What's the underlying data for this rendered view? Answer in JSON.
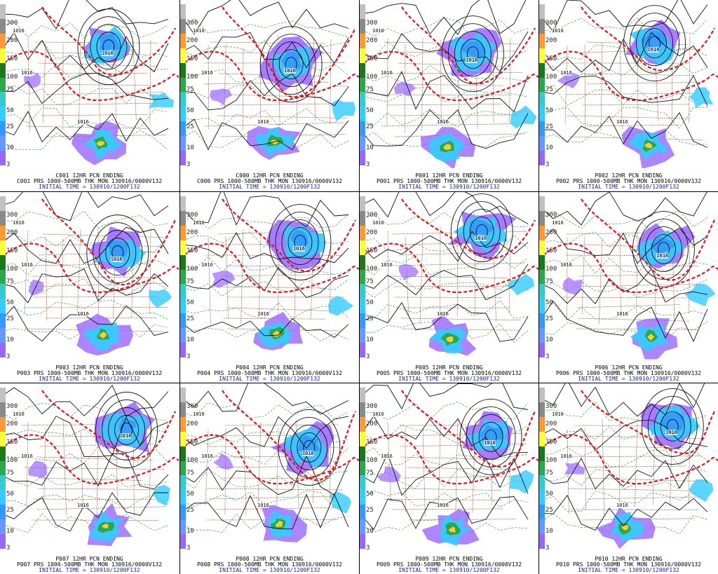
{
  "colorbar": {
    "ticks": [
      "300",
      "200",
      "150",
      "100",
      "75",
      "50",
      "25",
      "10",
      "3"
    ],
    "colors": [
      "#c0c0c0",
      "#8a8a8a",
      "#ff9933",
      "#ffff33",
      "#1a7a1a",
      "#2aa84a",
      "#33cccc",
      "#33ccff",
      "#3399ff",
      "#6699ff",
      "#9966ff"
    ]
  },
  "colors": {
    "precip_light": "#9966ff",
    "precip_mid": "#33ccff",
    "precip_heavy": "#2aa84a",
    "precip_max": "#ffcc33",
    "thickness": "#e0141e",
    "pressure": "#111111",
    "borders": "#8b4a2a",
    "dashed": "#2a8a2a",
    "caption_time": "#1a1aa0"
  },
  "panels": [
    {
      "id": "C001",
      "line1": "C001 12HR PCN ENDING",
      "line2": "C001 PRS 1000-500MB THK MON 130916/0000V132",
      "line3": "INITIAL TIME = 130910/1200F132",
      "labels": [
        "1016",
        "1016",
        "1016",
        "1016"
      ]
    },
    {
      "id": "C000",
      "line1": "C000 12HR PCN ENDING",
      "line2": "C000 PRS 1000-500MB THK MON 130916/0000V132",
      "line3": "INITIAL TIME = 130910/1200F132",
      "labels": [
        "1016",
        "1016",
        "1016",
        "1016"
      ]
    },
    {
      "id": "P001",
      "line1": "P001 12HR PCN ENDING",
      "line2": "P001 PRS 1000-500MB THK MON 130916/0000V132",
      "line3": "INITIAL TIME = 130910/1200F132",
      "labels": [
        "1016",
        "1016",
        "1016",
        "1016"
      ]
    },
    {
      "id": "P002",
      "line1": "P002 12HR PCN ENDING",
      "line2": "P002 PRS 1000-500MB THK MON 130916/0000V132",
      "line3": "INITIAL TIME = 130910/1200F132",
      "labels": [
        "1016",
        "1016",
        "1016",
        "1016"
      ]
    },
    {
      "id": "P003",
      "line1": "P003 12HR PCN ENDING",
      "line2": "P003 PRS 1000-500MB THK MON 130916/0000V132",
      "line3": "INITIAL TIME = 130910/1200F132",
      "labels": [
        "1016",
        "1016",
        "1016",
        "1016"
      ]
    },
    {
      "id": "P004",
      "line1": "P004 12HR PCN ENDING",
      "line2": "P004 PRS 1000-500MB THK MON 130916/0000V132",
      "line3": "INITIAL TIME = 130910/1200F132",
      "labels": [
        "1016",
        "1016",
        "1016",
        "1016"
      ]
    },
    {
      "id": "P005",
      "line1": "P005 12HR PCN ENDING",
      "line2": "P005 PRS 1000-500MB THK MON 130916/0000V132",
      "line3": "INITIAL TIME = 130910/1200F132",
      "labels": [
        "1016",
        "1016",
        "1016",
        "1016"
      ]
    },
    {
      "id": "P006",
      "line1": "P006 12HR PCN ENDING",
      "line2": "P006 PRS 1000-500MB THK MON 130916/0000V132",
      "line3": "INITIAL TIME = 130910/1200F132",
      "labels": [
        "1016",
        "1016",
        "1016",
        "1016"
      ]
    },
    {
      "id": "P007",
      "line1": "P007 12HR PCN ENDING",
      "line2": "P007 PRS 1000-500MB THK MON 130916/0000V132",
      "line3": "INITIAL TIME = 130910/1200F132",
      "labels": [
        "1016",
        "1016",
        "1016",
        "1016"
      ]
    },
    {
      "id": "P008",
      "line1": "P008 12HR PCN ENDING",
      "line2": "P008 PRS 1000-500MB THK MON 130916/0000V132",
      "line3": "INITIAL TIME = 130910/1200F132",
      "labels": [
        "1016",
        "1016",
        "1016",
        "1016"
      ]
    },
    {
      "id": "P009",
      "line1": "P009 12HR PCN ENDING",
      "line2": "P009 PRS 1000-500MB THK MON 130916/0000V132",
      "line3": "INITIAL TIME = 130910/1200F132",
      "labels": [
        "1016",
        "1016",
        "1016",
        "1016"
      ]
    },
    {
      "id": "P010",
      "line1": "P010 12HR PCN ENDING",
      "line2": "P010 PRS 1000-500MB THK MON 130916/0000V132",
      "line3": "INITIAL TIME = 130910/1200F132",
      "labels": [
        "1016",
        "1016",
        "1016",
        "1016"
      ]
    }
  ]
}
